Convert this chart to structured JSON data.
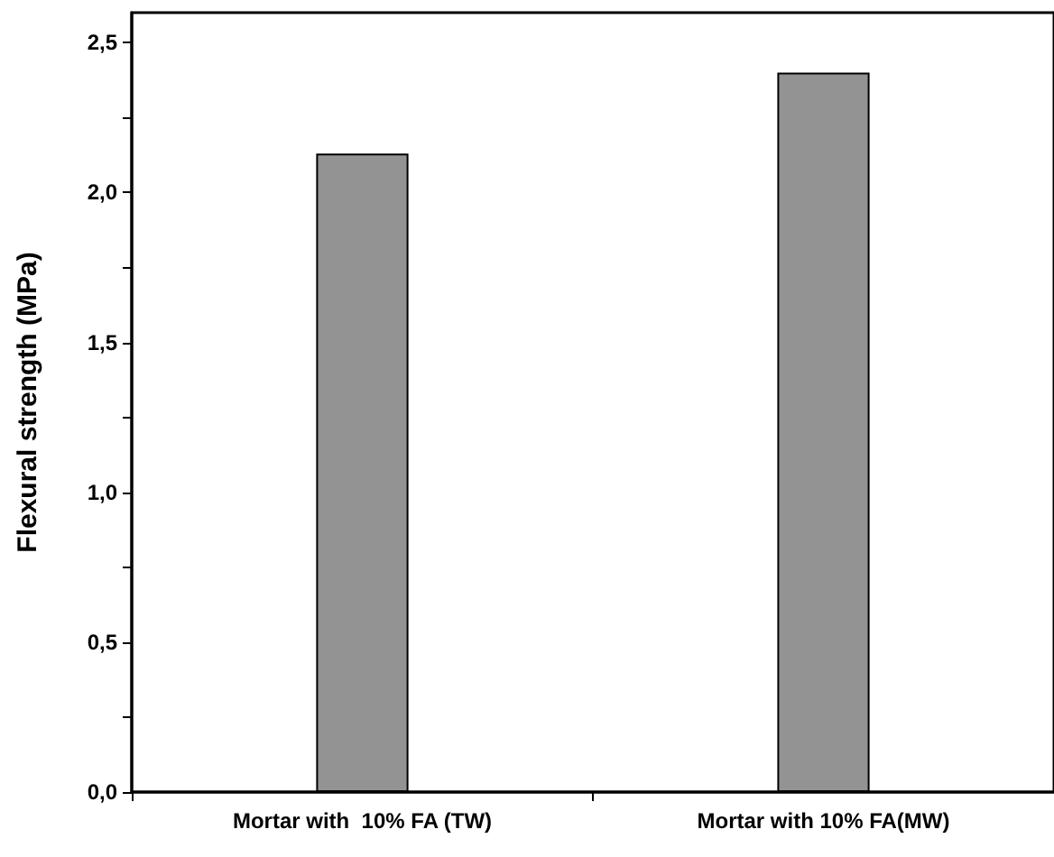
{
  "chart_data": {
    "type": "bar",
    "ylabel": "Flexural strength (MPa)",
    "categories": [
      "Mortar with  10% FA (TW)",
      "Mortar with 10% FA(MW)"
    ],
    "values": [
      2.13,
      2.4
    ],
    "color": "#939393",
    "ylim": [
      0,
      2.6
    ],
    "yticks": [
      {
        "value": 0,
        "label": "0,0"
      },
      {
        "value": 0.25,
        "label": null
      },
      {
        "value": 0.5,
        "label": "0,5"
      },
      {
        "value": 0.75,
        "label": null
      },
      {
        "value": 1,
        "label": "1,0"
      },
      {
        "value": 1.25,
        "label": null
      },
      {
        "value": 1.5,
        "label": "1,5"
      },
      {
        "value": 1.75,
        "label": null
      },
      {
        "value": 2,
        "label": "2,0"
      },
      {
        "value": 2.25,
        "label": null
      },
      {
        "value": 2.5,
        "label": "2,5"
      }
    ],
    "grid": false
  }
}
